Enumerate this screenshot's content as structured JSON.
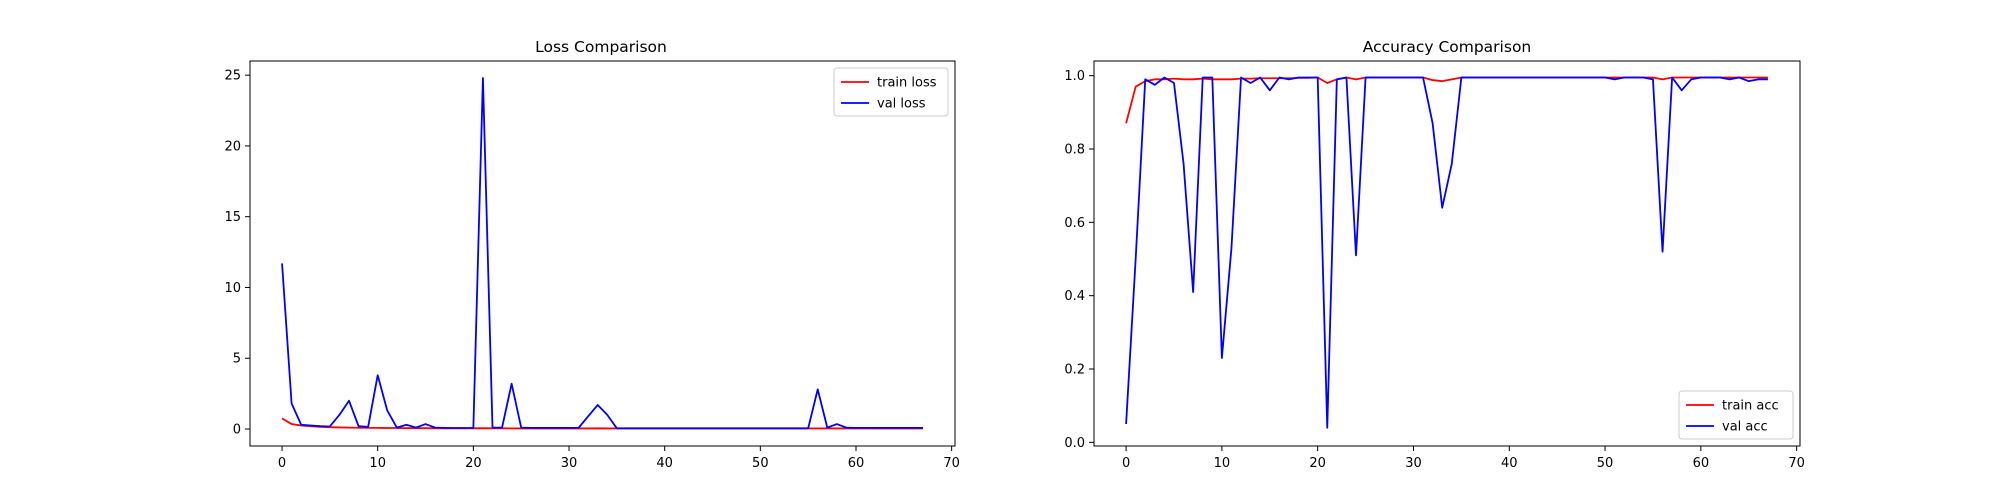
{
  "chart_data": [
    {
      "type": "line",
      "title": "Loss Comparison",
      "xlabel": "",
      "ylabel": "",
      "xlim": [
        -3.35,
        70.35
      ],
      "ylim": [
        -1.2,
        26.0
      ],
      "xticks": [
        0,
        10,
        20,
        30,
        40,
        50,
        60,
        70
      ],
      "yticks": [
        0,
        5,
        10,
        15,
        20,
        25
      ],
      "xtick_labels": [
        "0",
        "10",
        "20",
        "30",
        "40",
        "50",
        "60",
        "70"
      ],
      "ytick_labels": [
        "0",
        "5",
        "10",
        "15",
        "20",
        "25"
      ],
      "grid": false,
      "legend_position": "upper-right",
      "x": [
        0,
        1,
        2,
        3,
        4,
        5,
        6,
        7,
        8,
        9,
        10,
        11,
        12,
        13,
        14,
        15,
        16,
        17,
        18,
        19,
        20,
        21,
        22,
        23,
        24,
        25,
        26,
        27,
        28,
        29,
        30,
        31,
        32,
        33,
        34,
        35,
        36,
        37,
        38,
        39,
        40,
        41,
        42,
        43,
        44,
        45,
        46,
        47,
        48,
        49,
        50,
        51,
        52,
        53,
        54,
        55,
        56,
        57,
        58,
        59,
        60,
        61,
        62,
        63,
        64,
        65,
        66,
        67
      ],
      "series": [
        {
          "name": "train loss",
          "color": "#ff0000",
          "values": [
            0.75,
            0.35,
            0.25,
            0.2,
            0.15,
            0.13,
            0.11,
            0.1,
            0.09,
            0.08,
            0.08,
            0.07,
            0.07,
            0.06,
            0.06,
            0.06,
            0.05,
            0.05,
            0.05,
            0.05,
            0.05,
            0.06,
            0.05,
            0.05,
            0.04,
            0.04,
            0.04,
            0.04,
            0.04,
            0.04,
            0.04,
            0.04,
            0.04,
            0.05,
            0.04,
            0.04,
            0.04,
            0.04,
            0.04,
            0.04,
            0.04,
            0.04,
            0.04,
            0.04,
            0.04,
            0.04,
            0.04,
            0.04,
            0.04,
            0.04,
            0.04,
            0.04,
            0.04,
            0.04,
            0.04,
            0.04,
            0.04,
            0.04,
            0.04,
            0.04,
            0.04,
            0.04,
            0.04,
            0.04,
            0.04,
            0.04,
            0.04,
            0.04
          ]
        },
        {
          "name": "val loss",
          "color": "#0000ff",
          "values": [
            11.7,
            1.8,
            0.3,
            0.25,
            0.2,
            0.18,
            1.0,
            2.0,
            0.2,
            0.15,
            3.8,
            1.3,
            0.1,
            0.3,
            0.1,
            0.35,
            0.1,
            0.08,
            0.07,
            0.07,
            0.07,
            24.8,
            0.1,
            0.1,
            3.2,
            0.1,
            0.08,
            0.08,
            0.08,
            0.08,
            0.08,
            0.08,
            0.9,
            1.7,
            1.0,
            0.05,
            0.05,
            0.05,
            0.05,
            0.05,
            0.05,
            0.05,
            0.05,
            0.05,
            0.05,
            0.05,
            0.05,
            0.05,
            0.05,
            0.05,
            0.05,
            0.05,
            0.05,
            0.05,
            0.05,
            0.05,
            2.8,
            0.1,
            0.35,
            0.1,
            0.08,
            0.08,
            0.08,
            0.08,
            0.08,
            0.08,
            0.08,
            0.08
          ]
        }
      ]
    },
    {
      "type": "line",
      "title": "Accuracy Comparison",
      "xlabel": "",
      "ylabel": "",
      "xlim": [
        -3.35,
        70.35
      ],
      "ylim": [
        -0.01,
        1.04
      ],
      "xticks": [
        0,
        10,
        20,
        30,
        40,
        50,
        60,
        70
      ],
      "yticks": [
        0.0,
        0.2,
        0.4,
        0.6,
        0.8,
        1.0
      ],
      "xtick_labels": [
        "0",
        "10",
        "20",
        "30",
        "40",
        "50",
        "60",
        "70"
      ],
      "ytick_labels": [
        "0.0",
        "0.2",
        "0.4",
        "0.6",
        "0.8",
        "1.0"
      ],
      "grid": false,
      "legend_position": "lower-right",
      "x": [
        0,
        1,
        2,
        3,
        4,
        5,
        6,
        7,
        8,
        9,
        10,
        11,
        12,
        13,
        14,
        15,
        16,
        17,
        18,
        19,
        20,
        21,
        22,
        23,
        24,
        25,
        26,
        27,
        28,
        29,
        30,
        31,
        32,
        33,
        34,
        35,
        36,
        37,
        38,
        39,
        40,
        41,
        42,
        43,
        44,
        45,
        46,
        47,
        48,
        49,
        50,
        51,
        52,
        53,
        54,
        55,
        56,
        57,
        58,
        59,
        60,
        61,
        62,
        63,
        64,
        65,
        66,
        67
      ],
      "series": [
        {
          "name": "train acc",
          "color": "#ff0000",
          "values": [
            0.87,
            0.97,
            0.985,
            0.99,
            0.99,
            0.992,
            0.99,
            0.99,
            0.992,
            0.99,
            0.99,
            0.99,
            0.992,
            0.992,
            0.993,
            0.993,
            0.993,
            0.993,
            0.994,
            0.994,
            0.995,
            0.98,
            0.99,
            0.995,
            0.99,
            0.995,
            0.995,
            0.995,
            0.995,
            0.995,
            0.995,
            0.995,
            0.988,
            0.985,
            0.99,
            0.995,
            0.995,
            0.995,
            0.995,
            0.995,
            0.995,
            0.995,
            0.995,
            0.995,
            0.995,
            0.995,
            0.995,
            0.995,
            0.995,
            0.995,
            0.995,
            0.995,
            0.995,
            0.995,
            0.995,
            0.995,
            0.99,
            0.995,
            0.995,
            0.995,
            0.995,
            0.995,
            0.995,
            0.995,
            0.995,
            0.995,
            0.995,
            0.995
          ]
        },
        {
          "name": "val acc",
          "color": "#0000ff",
          "values": [
            0.05,
            0.5,
            0.99,
            0.975,
            0.995,
            0.98,
            0.76,
            0.41,
            0.995,
            0.995,
            0.23,
            0.53,
            0.995,
            0.98,
            0.995,
            0.96,
            0.995,
            0.99,
            0.995,
            0.995,
            0.995,
            0.04,
            0.99,
            0.995,
            0.51,
            0.995,
            0.995,
            0.995,
            0.995,
            0.995,
            0.995,
            0.995,
            0.87,
            0.64,
            0.76,
            0.995,
            0.995,
            0.995,
            0.995,
            0.995,
            0.995,
            0.995,
            0.995,
            0.995,
            0.995,
            0.995,
            0.995,
            0.995,
            0.995,
            0.995,
            0.995,
            0.99,
            0.995,
            0.995,
            0.995,
            0.99,
            0.52,
            0.995,
            0.96,
            0.99,
            0.995,
            0.995,
            0.995,
            0.99,
            0.995,
            0.985,
            0.99,
            0.99
          ]
        }
      ]
    }
  ]
}
